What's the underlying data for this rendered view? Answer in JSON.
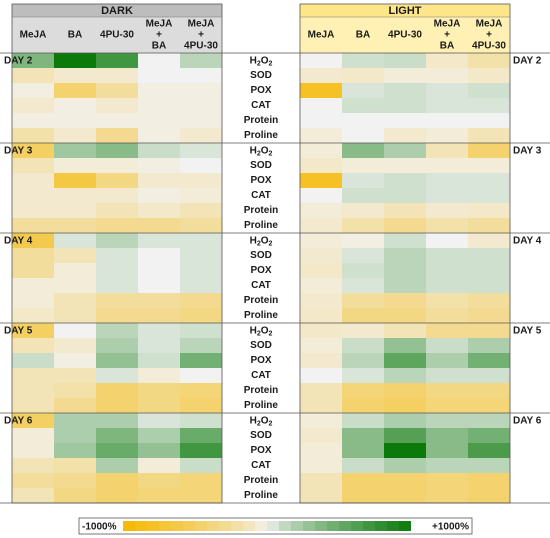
{
  "chart_data": {
    "type": "heatmap",
    "groups": [
      {
        "label": "DARK",
        "columns": [
          [
            "MeJA"
          ],
          [
            "BA"
          ],
          [
            "4PU-30"
          ],
          [
            "MeJA",
            "+",
            "BA"
          ],
          [
            "MeJA",
            "+",
            "4PU-30"
          ]
        ]
      },
      {
        "label": "LIGHT",
        "columns": [
          [
            "MeJA"
          ],
          [
            "BA"
          ],
          [
            "4PU-30"
          ],
          [
            "MeJA",
            "+",
            "BA"
          ],
          [
            "MeJA",
            "+",
            "4PU-30"
          ]
        ]
      }
    ],
    "days": [
      "DAY 2",
      "DAY 3",
      "DAY 4",
      "DAY 5",
      "DAY 6"
    ],
    "parameters": [
      "H2O2",
      "SOD",
      "POX",
      "CAT",
      "Protein",
      "Proline"
    ],
    "scale": {
      "min_label": "-1000%",
      "max_label": "+1000%",
      "min": -1000,
      "max": 1000,
      "neg_color": "#f5b800",
      "mid_color": "#f2f2f2",
      "pos_color": "#0b7a0b"
    },
    "dark": [
      [
        [
          400,
          1000,
          700,
          0,
          150
        ],
        [
          -150,
          -80,
          -80,
          0,
          0
        ],
        [
          -30,
          -450,
          -250,
          -30,
          -30
        ],
        [
          -80,
          -30,
          -80,
          -30,
          -30
        ],
        [
          -30,
          -30,
          -30,
          -30,
          -30
        ],
        [
          -200,
          -80,
          -300,
          -30,
          -80
        ]
      ],
      [
        [
          -500,
          250,
          350,
          100,
          50
        ],
        [
          -150,
          -50,
          -50,
          -30,
          0
        ],
        [
          -80,
          -650,
          -350,
          -80,
          -80
        ],
        [
          -80,
          -80,
          -80,
          -30,
          -50
        ],
        [
          -80,
          -80,
          -150,
          -100,
          -150
        ],
        [
          -250,
          -250,
          -300,
          -300,
          -250
        ]
      ],
      [
        [
          -600,
          50,
          150,
          50,
          50
        ],
        [
          -250,
          -150,
          50,
          0,
          50
        ],
        [
          -250,
          -50,
          50,
          0,
          50
        ],
        [
          -50,
          -50,
          50,
          0,
          50
        ],
        [
          -50,
          -150,
          -250,
          -250,
          -300
        ],
        [
          -100,
          -150,
          -300,
          -300,
          -350
        ]
      ],
      [
        [
          -500,
          0,
          150,
          50,
          80
        ],
        [
          -150,
          -80,
          200,
          50,
          150
        ],
        [
          100,
          -30,
          300,
          80,
          450
        ],
        [
          -150,
          -150,
          50,
          -50,
          0
        ],
        [
          -150,
          -200,
          -450,
          -350,
          -400
        ],
        [
          -150,
          -300,
          -450,
          -350,
          -450
        ]
      ],
      [
        [
          -500,
          200,
          200,
          50,
          80
        ],
        [
          -50,
          200,
          400,
          200,
          500
        ],
        [
          -50,
          250,
          500,
          300,
          700
        ],
        [
          -150,
          -200,
          200,
          -50,
          100
        ],
        [
          -250,
          -300,
          -450,
          -350,
          -400
        ],
        [
          -150,
          -350,
          -450,
          -400,
          -400
        ]
      ]
    ],
    "light": [
      [
        [
          0,
          80,
          100,
          -100,
          -200
        ],
        [
          -80,
          -100,
          -50,
          -50,
          -100
        ],
        [
          -800,
          50,
          80,
          50,
          80
        ],
        [
          0,
          80,
          80,
          50,
          50
        ],
        [
          0,
          0,
          0,
          0,
          0
        ],
        [
          -50,
          0,
          -80,
          -50,
          -150
        ]
      ],
      [
        [
          -50,
          350,
          200,
          -150,
          -450
        ],
        [
          -100,
          -50,
          -50,
          -50,
          -50
        ],
        [
          -800,
          50,
          80,
          50,
          50
        ],
        [
          0,
          80,
          80,
          50,
          50
        ],
        [
          -50,
          -80,
          -150,
          -80,
          -100
        ],
        [
          -80,
          -200,
          -300,
          -200,
          -250
        ]
      ],
      [
        [
          -50,
          -30,
          80,
          0,
          -80
        ],
        [
          -80,
          50,
          150,
          80,
          80
        ],
        [
          -100,
          80,
          150,
          80,
          80
        ],
        [
          -50,
          50,
          150,
          80,
          80
        ],
        [
          -80,
          -250,
          -300,
          -200,
          -250
        ],
        [
          -100,
          -350,
          -350,
          -250,
          -300
        ]
      ],
      [
        [
          -100,
          -80,
          -150,
          -300,
          -300
        ],
        [
          -50,
          100,
          300,
          100,
          200
        ],
        [
          -80,
          150,
          550,
          200,
          450
        ],
        [
          0,
          50,
          150,
          80,
          80
        ],
        [
          -150,
          -400,
          -450,
          -350,
          -350
        ],
        [
          -150,
          -450,
          -500,
          -400,
          -400
        ]
      ],
      [
        [
          -50,
          100,
          200,
          150,
          150
        ],
        [
          -80,
          350,
          600,
          350,
          450
        ],
        [
          -50,
          350,
          1000,
          350,
          650
        ],
        [
          -50,
          100,
          200,
          150,
          150
        ],
        [
          -150,
          -450,
          -450,
          -400,
          -450
        ],
        [
          -150,
          -450,
          -450,
          -400,
          -450
        ]
      ]
    ]
  }
}
